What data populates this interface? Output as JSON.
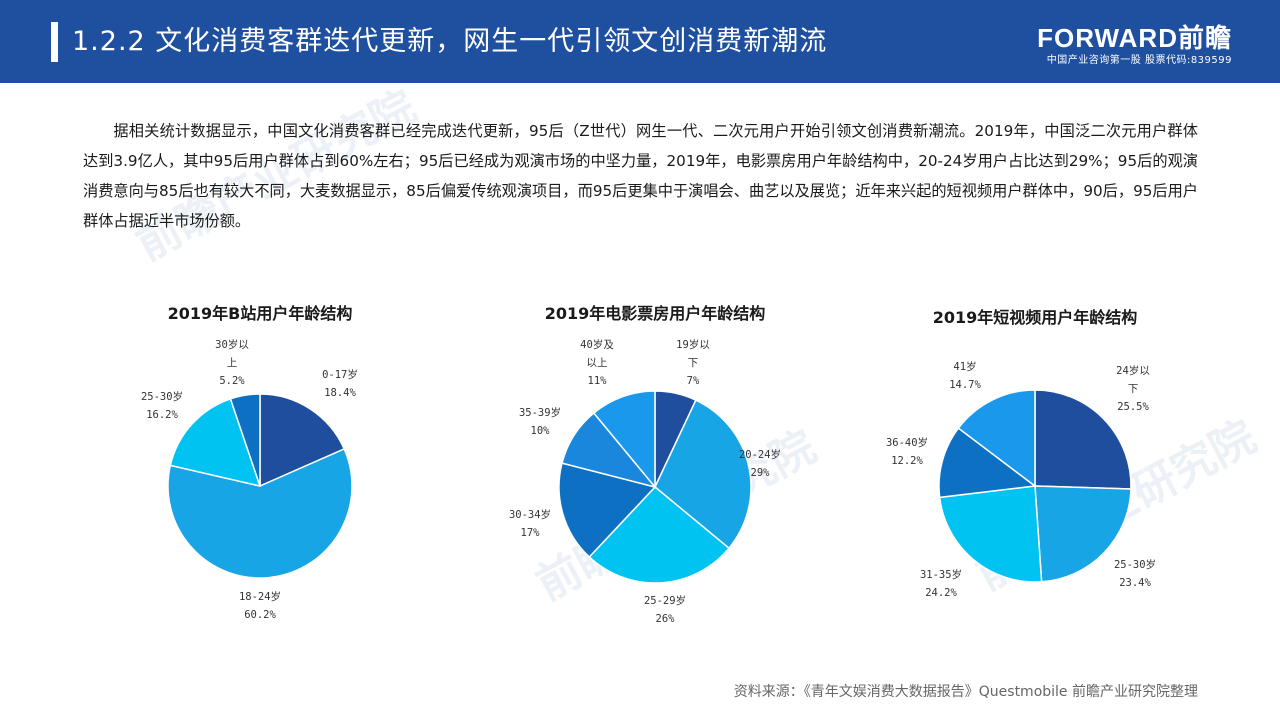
{
  "header": {
    "title": "1.2.2 文化消费客群迭代更新，网生一代引领文创消费新潮流",
    "logo_brand": "FORWARD前瞻",
    "logo_tagline": "中国产业咨询第一股 股票代码:839599"
  },
  "intro_text": "据相关统计数据显示，中国文化消费客群已经完成迭代更新，95后（Z世代）网生一代、二次元用户开始引领文创消费新潮流。2019年，中国泛二次元用户群体达到3.9亿人，其中95后用户群体占到60%左右；95后已经成为观演市场的中坚力量，2019年，电影票房用户年龄结构中，20-24岁用户占比达到29%；95后的观演消费意向与85后也有较大不同，大麦数据显示，85后偏爱传统观演项目，而95后更集中于演唱会、曲艺以及展览；近年来兴起的短视频用户群体中，90后，95后用户群体占据近半市场份额。",
  "watermark": "前瞻产业研究院",
  "source": "资料来源：《青年文娱消费大数据报告》Questmobile 前瞻产业研究院整理",
  "chart_data": [
    {
      "type": "pie",
      "title": "2019年B站用户年龄结构",
      "slices": [
        {
          "label": "0-17岁",
          "value": 18.4,
          "pct": "18.4%",
          "color": "#1f4e9e"
        },
        {
          "label": "18-24岁",
          "value": 60.2,
          "pct": "60.2%",
          "color": "#17a5e6"
        },
        {
          "label": "25-30岁",
          "value": 16.2,
          "pct": "16.2%",
          "color": "#00c3f2"
        },
        {
          "label": "30岁以上",
          "value": 5.2,
          "pct": "5.2%",
          "color": "#0d70c2"
        }
      ]
    },
    {
      "type": "pie",
      "title": "2019年电影票房用户年龄结构",
      "slices": [
        {
          "label": "19岁以下",
          "value": 7,
          "pct": "7%",
          "color": "#1f4e9e"
        },
        {
          "label": "20-24岁",
          "value": 29,
          "pct": "29%",
          "color": "#17a5e6"
        },
        {
          "label": "25-29岁",
          "value": 26,
          "pct": "26%",
          "color": "#00c3f2"
        },
        {
          "label": "30-34岁",
          "value": 17,
          "pct": "17%",
          "color": "#0d70c2"
        },
        {
          "label": "35-39岁",
          "value": 10,
          "pct": "10%",
          "color": "#1a86dc"
        },
        {
          "label": "40岁及以上",
          "value": 11,
          "pct": "11%",
          "color": "#1998ec"
        }
      ]
    },
    {
      "type": "pie",
      "title": "2019年短视频用户年龄结构",
      "slices": [
        {
          "label": "24岁以下",
          "value": 25.5,
          "pct": "25.5%",
          "color": "#1f4e9e"
        },
        {
          "label": "25-30岁",
          "value": 23.4,
          "pct": "23.4%",
          "color": "#17a5e6"
        },
        {
          "label": "31-35岁",
          "value": 24.2,
          "pct": "24.2%",
          "color": "#00c3f2"
        },
        {
          "label": "36-40岁",
          "value": 12.2,
          "pct": "12.2%",
          "color": "#0d70c2"
        },
        {
          "label": "41岁",
          "value": 14.7,
          "pct": "14.7%",
          "color": "#1998ec"
        }
      ]
    }
  ]
}
